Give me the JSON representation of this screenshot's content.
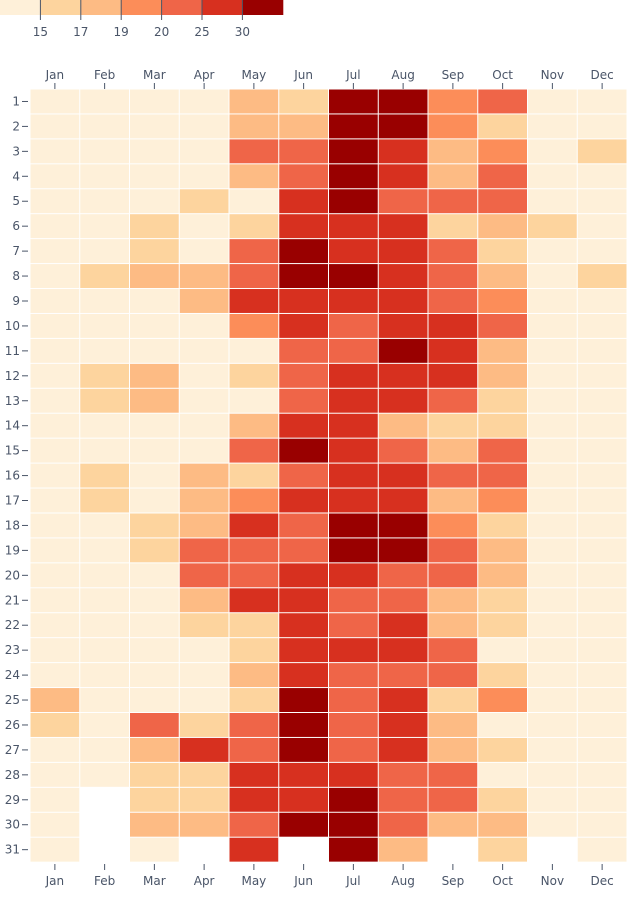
{
  "chart_data": {
    "type": "heatmap",
    "title": "",
    "xlabel": "",
    "ylabel": "",
    "x_categories": [
      "Jan",
      "Feb",
      "Mar",
      "Apr",
      "May",
      "Jun",
      "Jul",
      "Aug",
      "Sep",
      "Oct",
      "Nov",
      "Dec"
    ],
    "y_categories": [
      1,
      2,
      3,
      4,
      5,
      6,
      7,
      8,
      9,
      10,
      11,
      12,
      13,
      14,
      15,
      16,
      17,
      18,
      19,
      20,
      21,
      22,
      23,
      24,
      25,
      26,
      27,
      28,
      29,
      30,
      31
    ],
    "x_axis_position": "top-and-bottom",
    "legend": {
      "placement": "top-left",
      "thresholds": [
        15,
        17,
        19,
        20,
        25,
        30
      ],
      "colors": [
        "#fef0d9",
        "#fdd49e",
        "#fdbb84",
        "#fc8d59",
        "#ef6548",
        "#d7301f",
        "#990000"
      ]
    },
    "note_values": "estimated temperatures, each value chosen inside the legend bin its cell color indicates",
    "values_by_day": [
      [
        13,
        13,
        13,
        13,
        18,
        16,
        32,
        32,
        19.5,
        22,
        13,
        13
      ],
      [
        13,
        13,
        13,
        13,
        18,
        18,
        32,
        32,
        19.5,
        16,
        13,
        13
      ],
      [
        13,
        13,
        13,
        13,
        22,
        22,
        32,
        27,
        18,
        19.5,
        13,
        16
      ],
      [
        13,
        13,
        13,
        13,
        18,
        22,
        32,
        27,
        18,
        22,
        13,
        13
      ],
      [
        13,
        13,
        13,
        16,
        13,
        27,
        32,
        22,
        22,
        22,
        13,
        13
      ],
      [
        13,
        13,
        16,
        13,
        16,
        27,
        27,
        27,
        16,
        18,
        16,
        13
      ],
      [
        13,
        13,
        16,
        13,
        22,
        32,
        27,
        27,
        22,
        16,
        13,
        13
      ],
      [
        13,
        16,
        18,
        18,
        22,
        32,
        32,
        27,
        22,
        18,
        13,
        16
      ],
      [
        13,
        13,
        13,
        18,
        27,
        27,
        27,
        27,
        22,
        19.5,
        13,
        13
      ],
      [
        13,
        13,
        13,
        13,
        19.5,
        27,
        22,
        27,
        27,
        22,
        13,
        13
      ],
      [
        13,
        13,
        13,
        13,
        13,
        22,
        22,
        32,
        27,
        18,
        13,
        13
      ],
      [
        13,
        16,
        18,
        13,
        16,
        22,
        27,
        27,
        27,
        18,
        13,
        13
      ],
      [
        13,
        16,
        18,
        13,
        13,
        22,
        27,
        27,
        22,
        16,
        13,
        13
      ],
      [
        13,
        13,
        13,
        13,
        18,
        27,
        27,
        18,
        16,
        16,
        13,
        13
      ],
      [
        13,
        13,
        13,
        13,
        22,
        32,
        27,
        22,
        18,
        22,
        13,
        13
      ],
      [
        13,
        16,
        13,
        18,
        16,
        22,
        27,
        27,
        22,
        22,
        13,
        13
      ],
      [
        13,
        16,
        13,
        18,
        19.5,
        27,
        27,
        27,
        18,
        19.5,
        13,
        13
      ],
      [
        13,
        13,
        16,
        18,
        27,
        22,
        32,
        32,
        19.5,
        16,
        13,
        13
      ],
      [
        13,
        13,
        16,
        22,
        22,
        22,
        32,
        32,
        22,
        18,
        13,
        13
      ],
      [
        13,
        13,
        13,
        22,
        22,
        27,
        27,
        22,
        22,
        18,
        13,
        13
      ],
      [
        13,
        13,
        13,
        18,
        27,
        27,
        22,
        22,
        18,
        16,
        13,
        13
      ],
      [
        13,
        13,
        13,
        16,
        16,
        27,
        22,
        27,
        18,
        16,
        13,
        13
      ],
      [
        13,
        13,
        13,
        13,
        16,
        27,
        27,
        27,
        22,
        13,
        13,
        13
      ],
      [
        13,
        13,
        13,
        13,
        18,
        27,
        22,
        22,
        22,
        16,
        13,
        13
      ],
      [
        18,
        13,
        13,
        13,
        16,
        32,
        22,
        27,
        16,
        19.5,
        13,
        13
      ],
      [
        16,
        13,
        22,
        16,
        22,
        32,
        22,
        27,
        18,
        13,
        13,
        13
      ],
      [
        13,
        13,
        18,
        27,
        22,
        32,
        22,
        27,
        18,
        16,
        13,
        13
      ],
      [
        13,
        13,
        16,
        16,
        27,
        27,
        27,
        22,
        22,
        13,
        13,
        13
      ],
      [
        13,
        null,
        16,
        16,
        27,
        27,
        32,
        22,
        22,
        16,
        13,
        13
      ],
      [
        13,
        null,
        18,
        18,
        22,
        32,
        32,
        22,
        18,
        18,
        13,
        13
      ],
      [
        13,
        null,
        13,
        null,
        27,
        null,
        32,
        18,
        null,
        16,
        null,
        13
      ]
    ]
  }
}
